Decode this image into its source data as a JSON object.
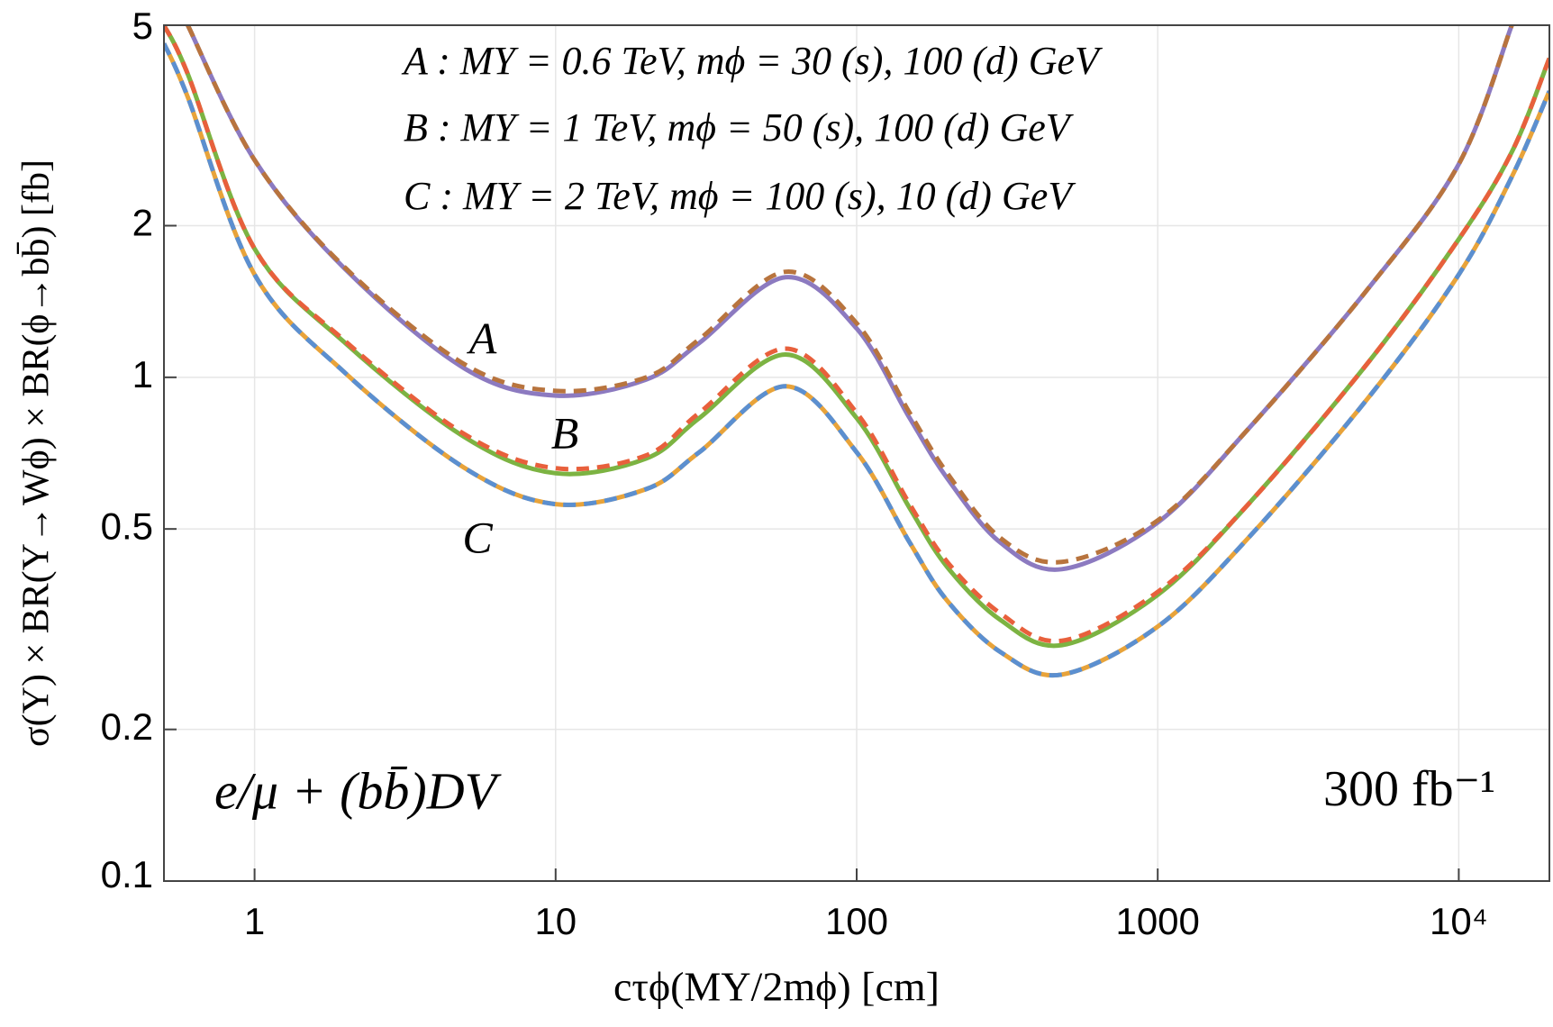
{
  "chart_data": {
    "type": "line",
    "x_label": "cτϕ(MΥ/2mϕ) [cm]",
    "y_label": "σ(Υ) × BR(Υ→Wϕ) × BR(ϕ→bb̄) [fb]",
    "annotations": [
      "A : MΥ = 0.6 TeV,  mϕ = 30 (s),  100 (d)  GeV",
      "B : MΥ = 1 TeV,  mϕ = 50 (s),  100 (d)  GeV",
      "C : MΥ = 2 TeV,  mϕ = 100 (s),  10 (d)  GeV",
      "A",
      "B",
      "C",
      "e/μ + (bb̄)DV",
      "300 fb⁻¹"
    ],
    "x": [
      0.5,
      0.6,
      1,
      2,
      5,
      10,
      20,
      30,
      58,
      100,
      150,
      200,
      300,
      480,
      1000,
      2000,
      5000,
      10000,
      15000,
      20000
    ],
    "series": [
      {
        "color": "#8c7ac0",
        "dashed": false,
        "values": [
          null,
          5,
          2.7,
          1.64,
          1.04,
          0.92,
          0.99,
          1.17,
          1.58,
          1.25,
          0.83,
          0.63,
          0.47,
          0.416,
          0.515,
          0.79,
          1.5,
          2.65,
          5,
          null
        ]
      },
      {
        "color": "#b8743e",
        "dashed": true,
        "values": [
          null,
          5,
          2.7,
          1.65,
          1.06,
          0.94,
          1.0,
          1.19,
          1.62,
          1.28,
          0.85,
          0.645,
          0.48,
          0.43,
          0.52,
          0.79,
          1.5,
          2.65,
          5,
          null
        ]
      },
      {
        "color": "#7cb342",
        "dashed": false,
        "values": [
          5,
          4.0,
          1.8,
          1.17,
          0.76,
          0.645,
          0.69,
          0.83,
          1.11,
          0.83,
          0.55,
          0.42,
          0.33,
          0.294,
          0.37,
          0.56,
          1.07,
          1.88,
          2.8,
          4.3
        ]
      },
      {
        "color": "#e8603c",
        "dashed": true,
        "values": [
          5,
          4.0,
          1.8,
          1.18,
          0.77,
          0.66,
          0.7,
          0.85,
          1.14,
          0.85,
          0.56,
          0.43,
          0.34,
          0.3,
          0.375,
          0.56,
          1.07,
          1.88,
          2.8,
          4.3
        ]
      },
      {
        "color": "#e8a33a",
        "dashed": false,
        "values": [
          4.6,
          3.6,
          1.6,
          1.02,
          0.66,
          0.56,
          0.6,
          0.71,
          0.96,
          0.71,
          0.47,
          0.36,
          0.285,
          0.257,
          0.32,
          0.48,
          0.91,
          1.6,
          2.5,
          3.7
        ]
      },
      {
        "color": "#5b8fd0",
        "dashed": true,
        "values": [
          4.6,
          3.6,
          1.6,
          1.02,
          0.66,
          0.56,
          0.6,
          0.71,
          0.96,
          0.71,
          0.47,
          0.36,
          0.285,
          0.257,
          0.32,
          0.48,
          0.91,
          1.6,
          2.5,
          3.7
        ]
      }
    ],
    "xlim": [
      0.5,
      20000
    ],
    "ylim": [
      0.1,
      5
    ],
    "xticks": [
      1,
      10,
      100,
      1000,
      {
        "value": 10000,
        "label": "10⁴"
      }
    ],
    "yticks": [
      0.1,
      0.2,
      0.5,
      1,
      2,
      5
    ],
    "xscale": "log",
    "yscale": "log",
    "grid": true
  }
}
